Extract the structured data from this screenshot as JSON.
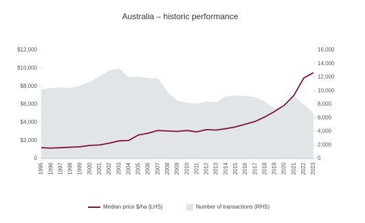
{
  "chart_data": {
    "type": "line-area",
    "title": "Australia – historic performance",
    "categories": [
      "1995",
      "1996",
      "1997",
      "1998",
      "1999",
      "2000",
      "2001",
      "2002",
      "2003",
      "2004",
      "2005",
      "2006",
      "2007",
      "2008",
      "2009",
      "2010",
      "2011",
      "2012",
      "2013",
      "2014",
      "2015",
      "2016",
      "2017",
      "2018",
      "2019",
      "2020",
      "2021",
      "2022",
      "2023"
    ],
    "series": [
      {
        "name": "Number of transactions (RHS)",
        "color": "#e1e5e8",
        "axis": "y2",
        "kind": "area",
        "values": [
          10200,
          10400,
          10500,
          10400,
          10800,
          11300,
          12100,
          13000,
          13300,
          12000,
          12100,
          11900,
          11800,
          9800,
          8600,
          8200,
          8100,
          8400,
          8300,
          9200,
          9300,
          9200,
          9100,
          8400,
          7400,
          7900,
          9200,
          8000,
          6700
        ]
      },
      {
        "name": "Median price $/ha (LHS)",
        "color": "#7b1040",
        "axis": "y",
        "kind": "line",
        "values": [
          1200,
          1150,
          1200,
          1250,
          1300,
          1450,
          1500,
          1700,
          1950,
          2000,
          2600,
          2800,
          3100,
          3050,
          3000,
          3100,
          2950,
          3200,
          3150,
          3300,
          3500,
          3800,
          4100,
          4600,
          5200,
          5900,
          7000,
          8900,
          9500
        ]
      }
    ],
    "ylim": [
      0,
      12000
    ],
    "yticks": [
      0,
      {
        "value": 2000,
        "label": "$2,000"
      },
      {
        "value": 4000,
        "label": "$4,000"
      },
      {
        "value": 6000,
        "label": "$6,000"
      },
      {
        "value": 8000,
        "label": "$8,000"
      },
      {
        "value": 10000,
        "label": "$10,000"
      },
      {
        "value": 12000,
        "label": "$12,000"
      }
    ],
    "y2lim": [
      0,
      16000
    ],
    "y2ticks": [
      0,
      {
        "value": 2000,
        "label": "2,000"
      },
      {
        "value": 4000,
        "label": "4,000"
      },
      {
        "value": 6000,
        "label": "6,000"
      },
      {
        "value": 8000,
        "label": "8,000"
      },
      {
        "value": 10000,
        "label": "10,000"
      },
      {
        "value": 12000,
        "label": "12,000"
      },
      {
        "value": 14000,
        "label": "14,000"
      },
      {
        "value": 16000,
        "label": "16,000"
      }
    ]
  }
}
